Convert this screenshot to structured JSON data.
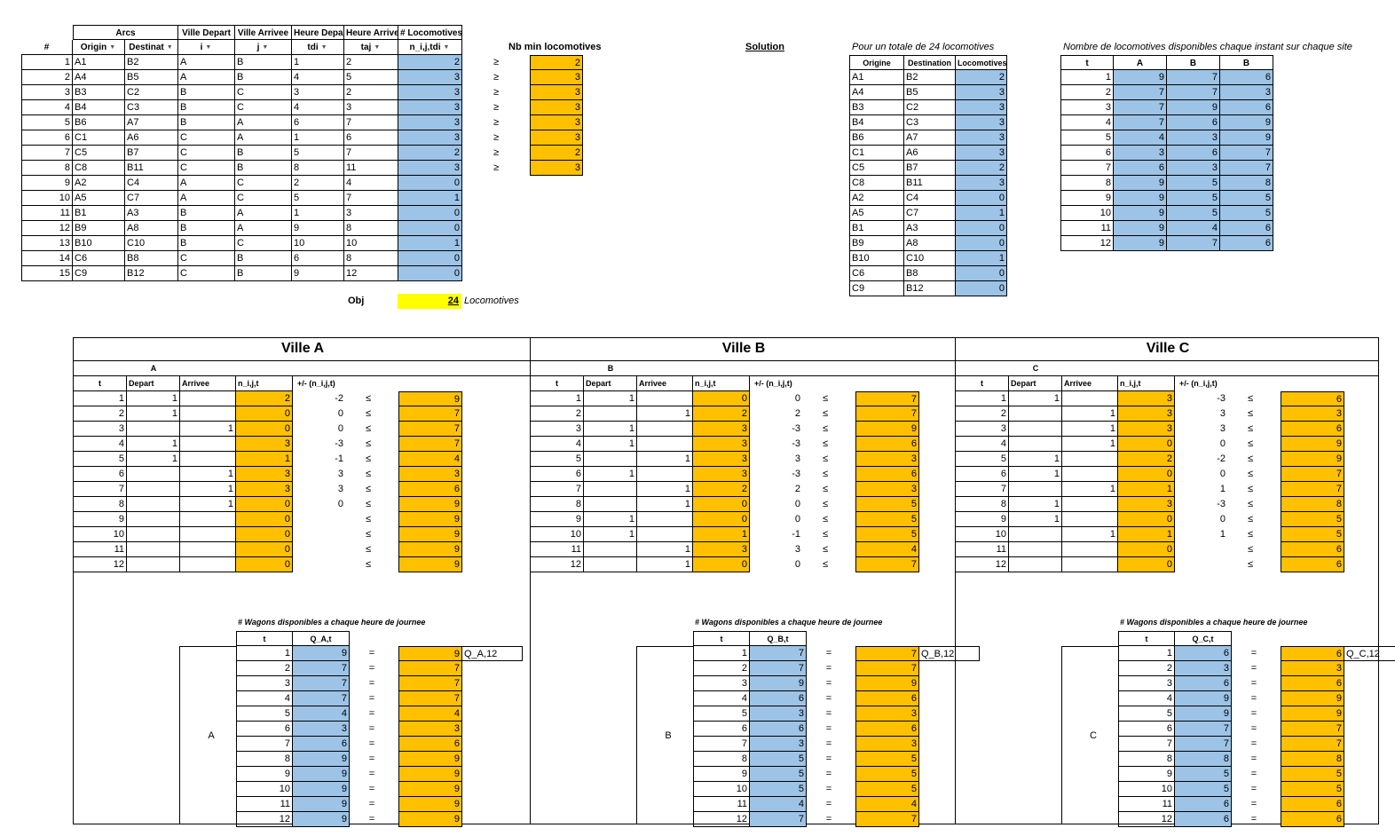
{
  "arcs": {
    "group_headers": {
      "arcs": "Arcs",
      "ville_depart": "Ville Depart",
      "ville_arrivee": "Ville Arrivee",
      "heure_depart": "Heure Depart",
      "heure_arrivee": "Heure Arrivee",
      "locomotives": "# Locomotives"
    },
    "headers": [
      "#",
      "Origin",
      "Destinat",
      "i",
      "j",
      "tdi",
      "taj",
      "n_i,j,tdi"
    ],
    "rows": [
      [
        "1",
        "A1",
        "B2",
        "A",
        "B",
        "1",
        "2",
        "2"
      ],
      [
        "2",
        "A4",
        "B5",
        "A",
        "B",
        "4",
        "5",
        "3"
      ],
      [
        "3",
        "B3",
        "C2",
        "B",
        "C",
        "3",
        "2",
        "3"
      ],
      [
        "4",
        "B4",
        "C3",
        "B",
        "C",
        "4",
        "3",
        "3"
      ],
      [
        "5",
        "B6",
        "A7",
        "B",
        "A",
        "6",
        "7",
        "3"
      ],
      [
        "6",
        "C1",
        "A6",
        "C",
        "A",
        "1",
        "6",
        "3"
      ],
      [
        "7",
        "C5",
        "B7",
        "C",
        "B",
        "5",
        "7",
        "2"
      ],
      [
        "8",
        "C8",
        "B11",
        "C",
        "B",
        "8",
        "11",
        "3"
      ],
      [
        "9",
        "A2",
        "C4",
        "A",
        "C",
        "2",
        "4",
        "0"
      ],
      [
        "10",
        "A5",
        "C7",
        "A",
        "C",
        "5",
        "7",
        "1"
      ],
      [
        "11",
        "B1",
        "A3",
        "B",
        "A",
        "1",
        "3",
        "0"
      ],
      [
        "12",
        "B9",
        "A8",
        "B",
        "A",
        "9",
        "8",
        "0"
      ],
      [
        "13",
        "B10",
        "C10",
        "B",
        "C",
        "10",
        "10",
        "1"
      ],
      [
        "14",
        "C6",
        "B8",
        "C",
        "B",
        "6",
        "8",
        "0"
      ],
      [
        "15",
        "C9",
        "B12",
        "C",
        "B",
        "9",
        "12",
        "0"
      ]
    ]
  },
  "min_loco": {
    "title": "Nb min locomotives",
    "symbol": "≥",
    "values": [
      "2",
      "3",
      "3",
      "3",
      "3",
      "3",
      "2",
      "3"
    ]
  },
  "objective": {
    "label": "Obj",
    "value": "24",
    "unit": "Locomotives"
  },
  "solution": {
    "label": "Solution",
    "caption": "Pour un totale de 24 locomotives",
    "headers": [
      "Origine",
      "Destination",
      "Locomotives:"
    ],
    "rows": [
      [
        "A1",
        "B2",
        "2"
      ],
      [
        "A4",
        "B5",
        "3"
      ],
      [
        "B3",
        "C2",
        "3"
      ],
      [
        "B4",
        "C3",
        "3"
      ],
      [
        "B6",
        "A7",
        "3"
      ],
      [
        "C1",
        "A6",
        "3"
      ],
      [
        "C5",
        "B7",
        "2"
      ],
      [
        "C8",
        "B11",
        "3"
      ],
      [
        "A2",
        "C4",
        "0"
      ],
      [
        "A5",
        "C7",
        "1"
      ],
      [
        "B1",
        "A3",
        "0"
      ],
      [
        "B9",
        "A8",
        "0"
      ],
      [
        "B10",
        "C10",
        "1"
      ],
      [
        "C6",
        "B8",
        "0"
      ],
      [
        "C9",
        "B12",
        "0"
      ]
    ]
  },
  "availability": {
    "caption": "Nombre de locomotives disponibles chaque instant sur chaque site",
    "headers": [
      "t",
      "A",
      "B",
      "B"
    ],
    "rows": [
      [
        "1",
        "9",
        "7",
        "6"
      ],
      [
        "2",
        "7",
        "7",
        "3"
      ],
      [
        "3",
        "7",
        "9",
        "6"
      ],
      [
        "4",
        "7",
        "6",
        "9"
      ],
      [
        "5",
        "4",
        "3",
        "9"
      ],
      [
        "6",
        "3",
        "6",
        "7"
      ],
      [
        "7",
        "6",
        "3",
        "7"
      ],
      [
        "8",
        "9",
        "5",
        "8"
      ],
      [
        "9",
        "9",
        "5",
        "5"
      ],
      [
        "10",
        "9",
        "5",
        "5"
      ],
      [
        "11",
        "9",
        "4",
        "6"
      ],
      [
        "12",
        "9",
        "7",
        "6"
      ]
    ]
  },
  "cities": [
    {
      "title": "Ville A",
      "short": "A",
      "headers": [
        "t",
        "Depart",
        "Arrivee",
        "n_i,j,t",
        "+/- (n_i,j,t)"
      ],
      "rows": [
        [
          "1",
          "1",
          "",
          "2",
          "-2",
          "≤",
          "9"
        ],
        [
          "2",
          "1",
          "",
          "0",
          "0",
          "≤",
          "7"
        ],
        [
          "3",
          "",
          "1",
          "0",
          "0",
          "≤",
          "7"
        ],
        [
          "4",
          "1",
          "",
          "3",
          "-3",
          "≤",
          "7"
        ],
        [
          "5",
          "1",
          "",
          "1",
          "-1",
          "≤",
          "4"
        ],
        [
          "6",
          "",
          "1",
          "3",
          "3",
          "≤",
          "3"
        ],
        [
          "7",
          "",
          "1",
          "3",
          "3",
          "≤",
          "6"
        ],
        [
          "8",
          "",
          "1",
          "0",
          "0",
          "≤",
          "9"
        ],
        [
          "9",
          "",
          "",
          "0",
          "",
          "≤",
          "9"
        ],
        [
          "10",
          "",
          "",
          "0",
          "",
          "≤",
          "9"
        ],
        [
          "11",
          "",
          "",
          "0",
          "",
          "≤",
          "9"
        ],
        [
          "12",
          "",
          "",
          "0",
          "",
          "≤",
          "9"
        ]
      ],
      "wagons_caption": "# Wagons disponibles a chaque heure de journee",
      "wagons_headers": [
        "t",
        "Q_A,t"
      ],
      "q_label": "Q_A,12",
      "wagons": [
        [
          "1",
          "9",
          "9"
        ],
        [
          "2",
          "7",
          "7"
        ],
        [
          "3",
          "7",
          "7"
        ],
        [
          "4",
          "7",
          "7"
        ],
        [
          "5",
          "4",
          "4"
        ],
        [
          "6",
          "3",
          "3"
        ],
        [
          "7",
          "6",
          "6"
        ],
        [
          "8",
          "9",
          "9"
        ],
        [
          "9",
          "9",
          "9"
        ],
        [
          "10",
          "9",
          "9"
        ],
        [
          "11",
          "9",
          "9"
        ],
        [
          "12",
          "9",
          "9"
        ]
      ]
    },
    {
      "title": "Ville B",
      "short": "B",
      "headers": [
        "t",
        "Depart",
        "Arrivee",
        "n_i,j,t",
        "+/- (n_i,j,t)"
      ],
      "rows": [
        [
          "1",
          "1",
          "",
          "0",
          "0",
          "≤",
          "7"
        ],
        [
          "2",
          "",
          "1",
          "2",
          "2",
          "≤",
          "7"
        ],
        [
          "3",
          "1",
          "",
          "3",
          "-3",
          "≤",
          "9"
        ],
        [
          "4",
          "1",
          "",
          "3",
          "-3",
          "≤",
          "6"
        ],
        [
          "5",
          "",
          "1",
          "3",
          "3",
          "≤",
          "3"
        ],
        [
          "6",
          "1",
          "",
          "3",
          "-3",
          "≤",
          "6"
        ],
        [
          "7",
          "",
          "1",
          "2",
          "2",
          "≤",
          "3"
        ],
        [
          "8",
          "",
          "1",
          "0",
          "0",
          "≤",
          "5"
        ],
        [
          "9",
          "1",
          "",
          "0",
          "0",
          "≤",
          "5"
        ],
        [
          "10",
          "1",
          "",
          "1",
          "-1",
          "≤",
          "5"
        ],
        [
          "11",
          "",
          "1",
          "3",
          "3",
          "≤",
          "4"
        ],
        [
          "12",
          "",
          "1",
          "0",
          "0",
          "≤",
          "7"
        ]
      ],
      "wagons_caption": "# Wagons disponibles a chaque heure de journee",
      "wagons_headers": [
        "t",
        "Q_B,t"
      ],
      "q_label": "Q_B,12",
      "wagons": [
        [
          "1",
          "7",
          "7"
        ],
        [
          "2",
          "7",
          "7"
        ],
        [
          "3",
          "9",
          "9"
        ],
        [
          "4",
          "6",
          "6"
        ],
        [
          "5",
          "3",
          "3"
        ],
        [
          "6",
          "6",
          "6"
        ],
        [
          "7",
          "3",
          "3"
        ],
        [
          "8",
          "5",
          "5"
        ],
        [
          "9",
          "5",
          "5"
        ],
        [
          "10",
          "5",
          "5"
        ],
        [
          "11",
          "4",
          "4"
        ],
        [
          "12",
          "7",
          "7"
        ]
      ]
    },
    {
      "title": "Ville C",
      "short": "C",
      "headers": [
        "t",
        "Depart",
        "Arrivee",
        "n_i,j,t",
        "+/- (n_i,j,t)"
      ],
      "rows": [
        [
          "1",
          "1",
          "",
          "3",
          "-3",
          "≤",
          "6"
        ],
        [
          "2",
          "",
          "1",
          "3",
          "3",
          "≤",
          "3"
        ],
        [
          "3",
          "",
          "1",
          "3",
          "3",
          "≤",
          "6"
        ],
        [
          "4",
          "",
          "1",
          "0",
          "0",
          "≤",
          "9"
        ],
        [
          "5",
          "1",
          "",
          "2",
          "-2",
          "≤",
          "9"
        ],
        [
          "6",
          "1",
          "",
          "0",
          "0",
          "≤",
          "7"
        ],
        [
          "7",
          "",
          "1",
          "1",
          "1",
          "≤",
          "7"
        ],
        [
          "8",
          "1",
          "",
          "3",
          "-3",
          "≤",
          "8"
        ],
        [
          "9",
          "1",
          "",
          "0",
          "0",
          "≤",
          "5"
        ],
        [
          "10",
          "",
          "1",
          "1",
          "1",
          "≤",
          "5"
        ],
        [
          "11",
          "",
          "",
          "0",
          "",
          "≤",
          "6"
        ],
        [
          "12",
          "",
          "",
          "0",
          "",
          "≤",
          "6"
        ]
      ],
      "wagons_caption": "# Wagons disponibles a chaque heure de journee",
      "wagons_headers": [
        "t",
        "Q_C,t"
      ],
      "q_label": "Q_C,12",
      "wagons": [
        [
          "1",
          "6",
          "6"
        ],
        [
          "2",
          "3",
          "3"
        ],
        [
          "3",
          "6",
          "6"
        ],
        [
          "4",
          "9",
          "9"
        ],
        [
          "5",
          "9",
          "9"
        ],
        [
          "6",
          "7",
          "7"
        ],
        [
          "7",
          "7",
          "7"
        ],
        [
          "8",
          "8",
          "8"
        ],
        [
          "9",
          "5",
          "5"
        ],
        [
          "10",
          "5",
          "5"
        ],
        [
          "11",
          "6",
          "6"
        ],
        [
          "12",
          "6",
          "6"
        ]
      ]
    }
  ],
  "equals_symbol": "="
}
